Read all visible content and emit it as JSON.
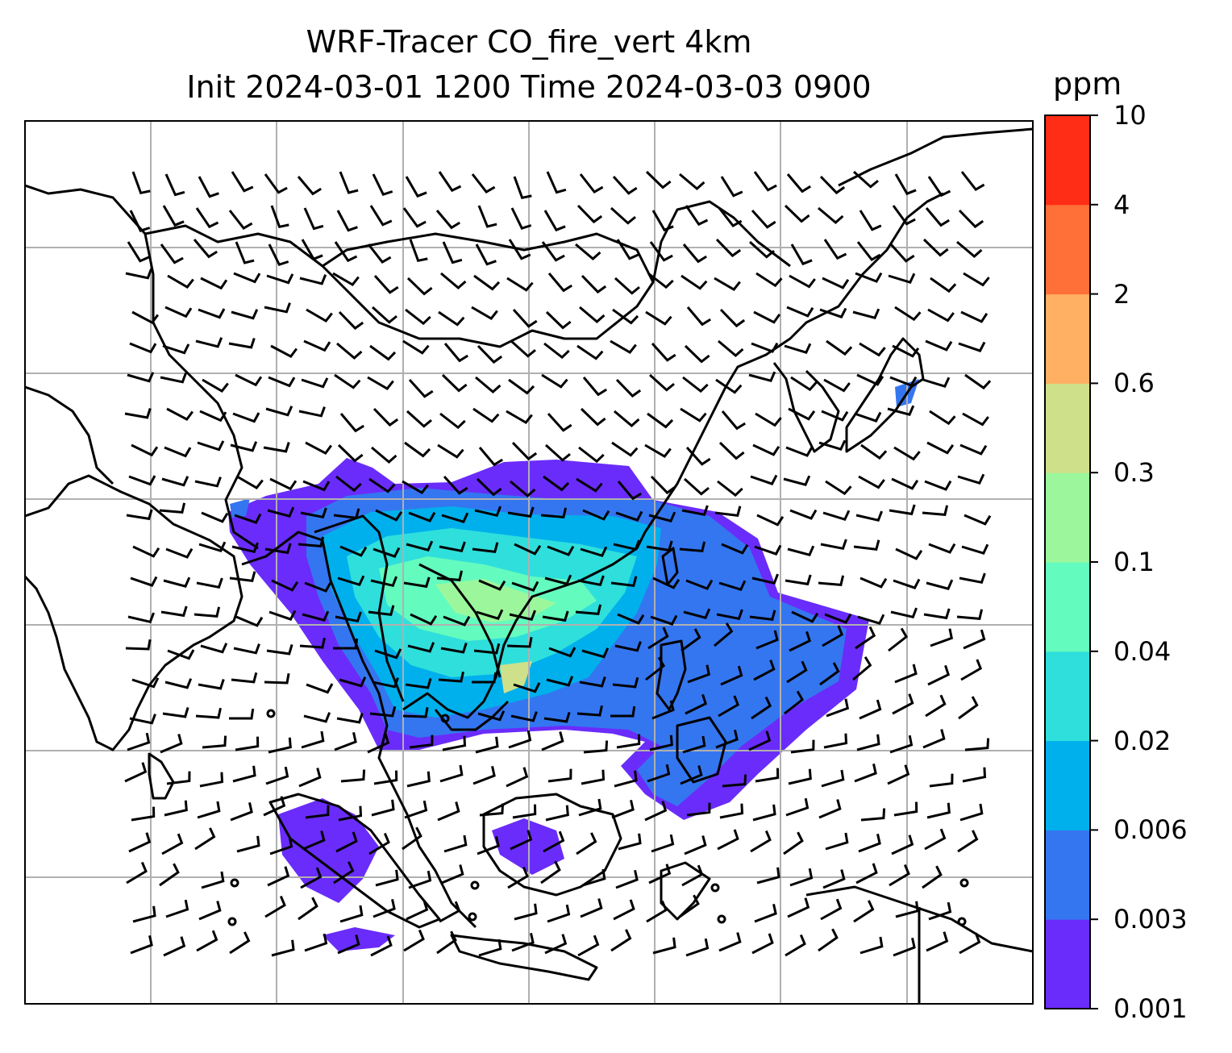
{
  "title": {
    "line1": "WRF-Tracer CO_fire_vert 4km",
    "line2": "Init 2024-03-01 1200 Time 2024-03-03 0900"
  },
  "colorbar": {
    "unit": "ppm",
    "levels": [
      "0.001",
      "0.003",
      "0.006",
      "0.02",
      "0.04",
      "0.1",
      "0.3",
      "0.6",
      "2",
      "4",
      "10"
    ],
    "colors": [
      "#6a2cfa",
      "#3476f0",
      "#00b0ec",
      "#2fdfdc",
      "#64fbbf",
      "#9cf79c",
      "#cfe08a",
      "#ffb062",
      "#ff7038",
      "#ff2c16"
    ]
  },
  "map": {
    "variable": "CO_fire_vert",
    "land_outline_color": "#000000",
    "gridline_color": "#b0b0b0",
    "wind_symbol": "barbs"
  }
}
